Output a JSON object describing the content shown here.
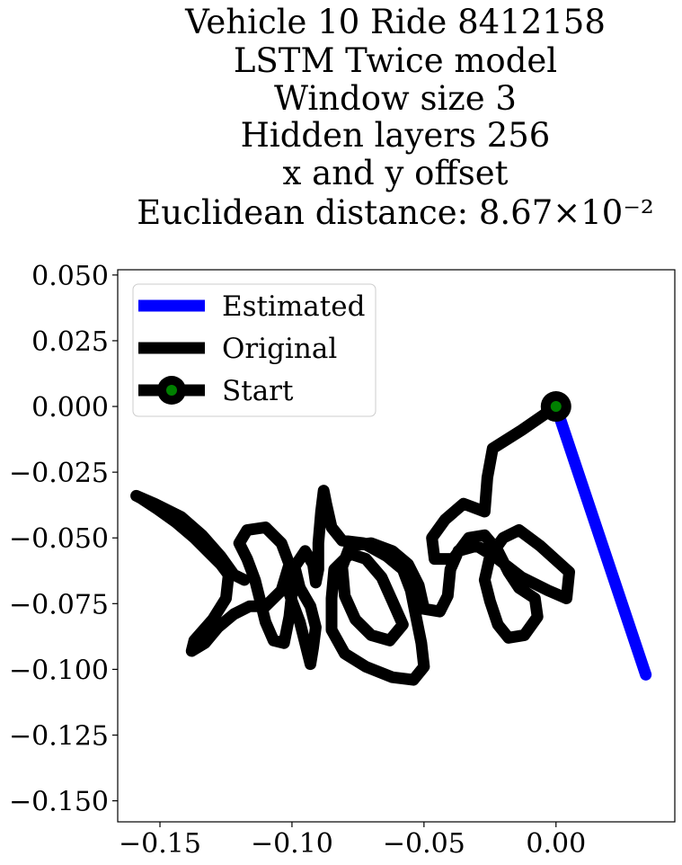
{
  "chart_data": {
    "type": "line",
    "title_lines": [
      "Vehicle 10 Ride 8412158",
      "LSTM Twice model",
      "Window size 3",
      "Hidden layers 256",
      "x and y offset",
      "Euclidean distance: 8.67×10⁻²"
    ],
    "xlim": [
      -0.166,
      0.045
    ],
    "ylim": [
      -0.158,
      0.052
    ],
    "x_ticks": [
      -0.15,
      -0.1,
      -0.05,
      0.0
    ],
    "x_tick_labels": [
      "−0.15",
      "−0.10",
      "−0.05",
      "0.00"
    ],
    "y_ticks": [
      0.05,
      0.025,
      0.0,
      -0.025,
      -0.05,
      -0.075,
      -0.1,
      -0.125,
      -0.15
    ],
    "y_tick_labels": [
      "0.050",
      "0.025",
      "0.000",
      "−0.025",
      "−0.050",
      "−0.075",
      "−0.100",
      "−0.125",
      "−0.150"
    ],
    "grid": false,
    "legend_position": "top-left",
    "series": [
      {
        "name": "Estimated",
        "color": "#0000ff",
        "points": [
          [
            0.0,
            0.0
          ],
          [
            0.034,
            -0.102
          ]
        ]
      },
      {
        "name": "Original",
        "color": "#000000",
        "points": [
          [
            0.0,
            0.0
          ],
          [
            -0.013,
            -0.009
          ],
          [
            -0.024,
            -0.016
          ],
          [
            -0.026,
            -0.027
          ],
          [
            -0.027,
            -0.04
          ],
          [
            -0.035,
            -0.037
          ],
          [
            -0.042,
            -0.043
          ],
          [
            -0.047,
            -0.05
          ],
          [
            -0.046,
            -0.058
          ],
          [
            -0.039,
            -0.058
          ],
          [
            -0.033,
            -0.05
          ],
          [
            -0.027,
            -0.049
          ],
          [
            -0.022,
            -0.055
          ],
          [
            -0.018,
            -0.063
          ],
          [
            -0.014,
            -0.069
          ],
          [
            -0.008,
            -0.073
          ],
          [
            -0.007,
            -0.08
          ],
          [
            -0.012,
            -0.087
          ],
          [
            -0.018,
            -0.088
          ],
          [
            -0.022,
            -0.083
          ],
          [
            -0.025,
            -0.074
          ],
          [
            -0.027,
            -0.066
          ],
          [
            -0.025,
            -0.057
          ],
          [
            -0.02,
            -0.05
          ],
          [
            -0.014,
            -0.047
          ],
          [
            -0.006,
            -0.053
          ],
          [
            0.005,
            -0.063
          ],
          [
            0.004,
            -0.073
          ],
          [
            -0.003,
            -0.07
          ],
          [
            -0.013,
            -0.065
          ],
          [
            -0.022,
            -0.058
          ],
          [
            -0.03,
            -0.053
          ],
          [
            -0.037,
            -0.055
          ],
          [
            -0.04,
            -0.062
          ],
          [
            -0.041,
            -0.072
          ],
          [
            -0.044,
            -0.078
          ],
          [
            -0.05,
            -0.077
          ],
          [
            -0.052,
            -0.068
          ],
          [
            -0.056,
            -0.06
          ],
          [
            -0.062,
            -0.055
          ],
          [
            -0.07,
            -0.052
          ],
          [
            -0.078,
            -0.053
          ],
          [
            -0.081,
            -0.061
          ],
          [
            -0.08,
            -0.072
          ],
          [
            -0.076,
            -0.081
          ],
          [
            -0.07,
            -0.087
          ],
          [
            -0.063,
            -0.089
          ],
          [
            -0.058,
            -0.083
          ],
          [
            -0.062,
            -0.074
          ],
          [
            -0.066,
            -0.065
          ],
          [
            -0.072,
            -0.058
          ],
          [
            -0.078,
            -0.056
          ],
          [
            -0.084,
            -0.062
          ],
          [
            -0.085,
            -0.073
          ],
          [
            -0.085,
            -0.085
          ],
          [
            -0.08,
            -0.094
          ],
          [
            -0.072,
            -0.099
          ],
          [
            -0.062,
            -0.103
          ],
          [
            -0.054,
            -0.104
          ],
          [
            -0.05,
            -0.099
          ],
          [
            -0.051,
            -0.09
          ],
          [
            -0.053,
            -0.08
          ],
          [
            -0.055,
            -0.07
          ],
          [
            -0.058,
            -0.062
          ],
          [
            -0.064,
            -0.057
          ],
          [
            -0.073,
            -0.052
          ],
          [
            -0.081,
            -0.051
          ],
          [
            -0.085,
            -0.046
          ],
          [
            -0.087,
            -0.037
          ],
          [
            -0.088,
            -0.032
          ],
          [
            -0.089,
            -0.04
          ],
          [
            -0.09,
            -0.052
          ],
          [
            -0.09,
            -0.062
          ],
          [
            -0.091,
            -0.067
          ],
          [
            -0.092,
            -0.06
          ],
          [
            -0.095,
            -0.055
          ],
          [
            -0.099,
            -0.061
          ],
          [
            -0.097,
            -0.069
          ],
          [
            -0.093,
            -0.076
          ],
          [
            -0.091,
            -0.084
          ],
          [
            -0.092,
            -0.092
          ],
          [
            -0.093,
            -0.098
          ],
          [
            -0.095,
            -0.09
          ],
          [
            -0.097,
            -0.082
          ],
          [
            -0.1,
            -0.074
          ],
          [
            -0.102,
            -0.068
          ],
          [
            -0.101,
            -0.064
          ],
          [
            -0.1,
            -0.071
          ],
          [
            -0.101,
            -0.08
          ],
          [
            -0.103,
            -0.09
          ],
          [
            -0.107,
            -0.089
          ],
          [
            -0.11,
            -0.082
          ],
          [
            -0.112,
            -0.074
          ],
          [
            -0.114,
            -0.066
          ],
          [
            -0.117,
            -0.058
          ],
          [
            -0.12,
            -0.052
          ],
          [
            -0.117,
            -0.047
          ],
          [
            -0.11,
            -0.046
          ],
          [
            -0.104,
            -0.052
          ],
          [
            -0.101,
            -0.06
          ],
          [
            -0.104,
            -0.07
          ],
          [
            -0.11,
            -0.076
          ],
          [
            -0.116,
            -0.076
          ],
          [
            -0.122,
            -0.079
          ],
          [
            -0.128,
            -0.084
          ],
          [
            -0.133,
            -0.09
          ],
          [
            -0.138,
            -0.093
          ],
          [
            -0.137,
            -0.089
          ],
          [
            -0.13,
            -0.081
          ],
          [
            -0.125,
            -0.073
          ],
          [
            -0.124,
            -0.064
          ],
          [
            -0.127,
            -0.06
          ],
          [
            -0.131,
            -0.056
          ],
          [
            -0.137,
            -0.05
          ],
          [
            -0.144,
            -0.044
          ],
          [
            -0.151,
            -0.039
          ],
          [
            -0.157,
            -0.035
          ],
          [
            -0.159,
            -0.034
          ],
          [
            -0.152,
            -0.037
          ],
          [
            -0.142,
            -0.042
          ],
          [
            -0.134,
            -0.049
          ],
          [
            -0.127,
            -0.057
          ],
          [
            -0.122,
            -0.064
          ],
          [
            -0.118,
            -0.066
          ],
          [
            -0.124,
            -0.063
          ]
        ]
      },
      {
        "name": "Start",
        "color": "#000000",
        "marker_color": "#008000",
        "points": [
          [
            0.0,
            0.0
          ]
        ]
      }
    ]
  }
}
